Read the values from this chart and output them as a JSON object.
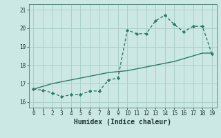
{
  "xlabel": "Humidex (Indice chaleur)",
  "x": [
    0,
    1,
    2,
    3,
    4,
    5,
    6,
    7,
    8,
    9,
    10,
    11,
    12,
    13,
    14,
    15,
    16,
    17,
    18,
    19
  ],
  "y_main": [
    16.7,
    16.65,
    16.5,
    16.3,
    16.4,
    16.4,
    16.6,
    16.6,
    17.2,
    17.3,
    19.9,
    19.7,
    19.7,
    20.4,
    20.7,
    20.2,
    19.8,
    20.1,
    20.1,
    18.6
  ],
  "y_trend": [
    16.7,
    16.85,
    17.0,
    17.1,
    17.2,
    17.3,
    17.4,
    17.5,
    17.6,
    17.65,
    17.7,
    17.8,
    17.9,
    18.0,
    18.1,
    18.2,
    18.35,
    18.5,
    18.65,
    18.65
  ],
  "line_color": "#2d7a6a",
  "bg_color": "#cce8e4",
  "grid_color": "#aacfcb",
  "ylim": [
    15.7,
    21.3
  ],
  "xlim": [
    -0.5,
    19.5
  ],
  "yticks": [
    16,
    17,
    18,
    19,
    20,
    21
  ],
  "xticks": [
    0,
    1,
    2,
    3,
    4,
    5,
    6,
    7,
    8,
    9,
    10,
    11,
    12,
    13,
    14,
    15,
    16,
    17,
    18,
    19
  ],
  "tick_fontsize": 5.5,
  "xlabel_fontsize": 7
}
